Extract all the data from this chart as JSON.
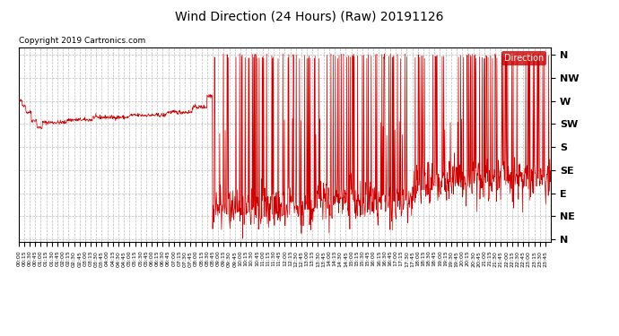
{
  "title": "Wind Direction (24 Hours) (Raw) 20191126",
  "copyright": "Copyright 2019 Cartronics.com",
  "background_color": "#ffffff",
  "plot_bg_color": "#ffffff",
  "line_color": "#cc0000",
  "grid_color": "#aaaaaa",
  "ylabel_labels": [
    "N",
    "NW",
    "W",
    "SW",
    "S",
    "SE",
    "E",
    "NE",
    "N"
  ],
  "ylabel_values": [
    360,
    315,
    270,
    225,
    180,
    135,
    90,
    45,
    0
  ],
  "ylim": [
    -5,
    375
  ],
  "legend_label": "Direction",
  "legend_bg": "#cc0000",
  "legend_text_color": "#ffffff",
  "total_minutes": 1440,
  "figsize": [
    6.9,
    3.75
  ],
  "dpi": 100
}
